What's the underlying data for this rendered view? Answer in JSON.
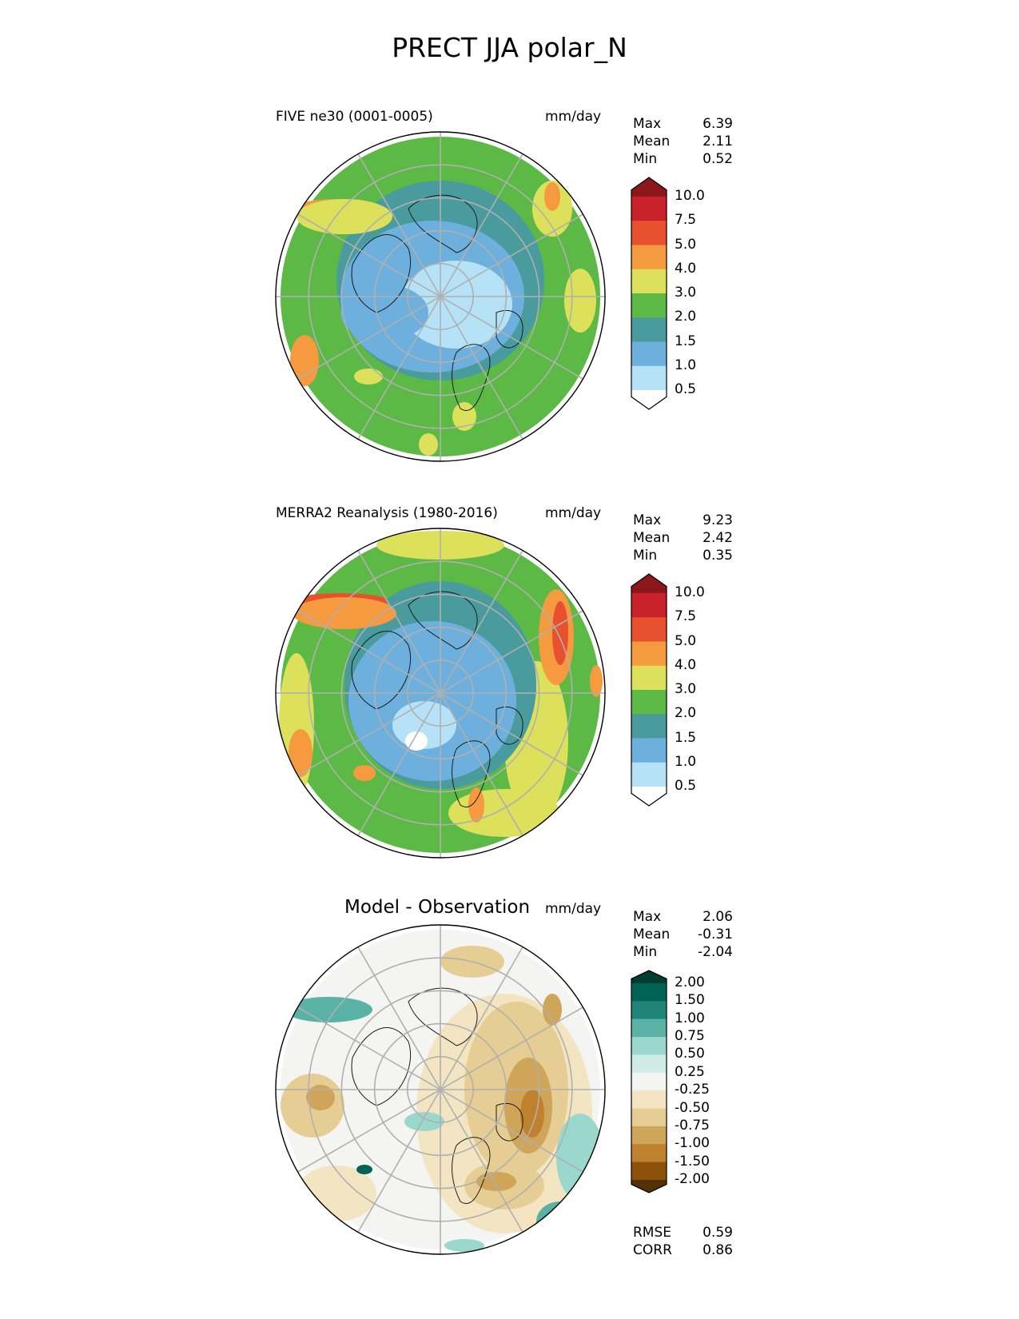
{
  "title": "PRECT JJA polar_N",
  "panels": [
    {
      "id": "test",
      "title": "FIVE ne30 (0001-0005)",
      "units": "mm/day",
      "stats": [
        {
          "label": "Max",
          "value": "6.39"
        },
        {
          "label": "Mean",
          "value": "2.11"
        },
        {
          "label": "Min",
          "value": "0.52"
        }
      ]
    },
    {
      "id": "ref",
      "title": "MERRA2 Reanalysis (1980-2016)",
      "units": "mm/day",
      "stats": [
        {
          "label": "Max",
          "value": "9.23"
        },
        {
          "label": "Mean",
          "value": "2.42"
        },
        {
          "label": "Min",
          "value": "0.35"
        }
      ]
    },
    {
      "id": "diff",
      "title": "Model - Observation",
      "units": "mm/day",
      "stats": [
        {
          "label": "Max",
          "value": "2.06"
        },
        {
          "label": "Mean",
          "value": "-0.31"
        },
        {
          "label": "Min",
          "value": "-2.04"
        }
      ],
      "metrics": [
        {
          "label": "RMSE",
          "value": "0.59"
        },
        {
          "label": "CORR",
          "value": "0.86"
        }
      ]
    }
  ],
  "chart_data": [
    {
      "type": "heatmap",
      "projection": "north-polar-stereographic",
      "title": "FIVE ne30 (0001-0005)",
      "units": "mm/day",
      "colorbar": {
        "ticks": [
          "0.5",
          "1.0",
          "1.5",
          "2.0",
          "3.0",
          "4.0",
          "5.0",
          "7.5",
          "10.0"
        ],
        "colors": [
          "#ffffff",
          "#b6e2f8",
          "#6eb0dd",
          "#4a9b9e",
          "#5cb946",
          "#dce05b",
          "#f59a3f",
          "#e8512e",
          "#c9222a",
          "#8e171b"
        ],
        "extend": "both"
      },
      "stats": {
        "max": 6.39,
        "mean": 2.11,
        "min": 0.52
      }
    },
    {
      "type": "heatmap",
      "projection": "north-polar-stereographic",
      "title": "MERRA2 Reanalysis (1980-2016)",
      "units": "mm/day",
      "colorbar": {
        "ticks": [
          "0.5",
          "1.0",
          "1.5",
          "2.0",
          "3.0",
          "4.0",
          "5.0",
          "7.5",
          "10.0"
        ],
        "colors": [
          "#ffffff",
          "#b6e2f8",
          "#6eb0dd",
          "#4a9b9e",
          "#5cb946",
          "#dce05b",
          "#f59a3f",
          "#e8512e",
          "#c9222a",
          "#8e171b"
        ],
        "extend": "both"
      },
      "stats": {
        "max": 9.23,
        "mean": 2.42,
        "min": 0.35
      }
    },
    {
      "type": "heatmap",
      "projection": "north-polar-stereographic",
      "title": "Model - Observation",
      "units": "mm/day",
      "colorbar": {
        "ticks": [
          "-2.00",
          "-1.50",
          "-1.00",
          "-0.75",
          "-0.50",
          "-0.25",
          "0.25",
          "0.50",
          "0.75",
          "1.00",
          "1.50",
          "2.00"
        ],
        "colors": [
          "#543005",
          "#8c510a",
          "#bf812d",
          "#cfa55a",
          "#e6cd94",
          "#f3e5c2",
          "#f4f4f2",
          "#d0ebe6",
          "#9ad7cc",
          "#5ab2a6",
          "#208579",
          "#016356",
          "#003c30"
        ],
        "extend": "both"
      },
      "stats": {
        "max": 2.06,
        "mean": -0.31,
        "min": -2.04
      },
      "rmse": 0.59,
      "corr": 0.86
    }
  ]
}
